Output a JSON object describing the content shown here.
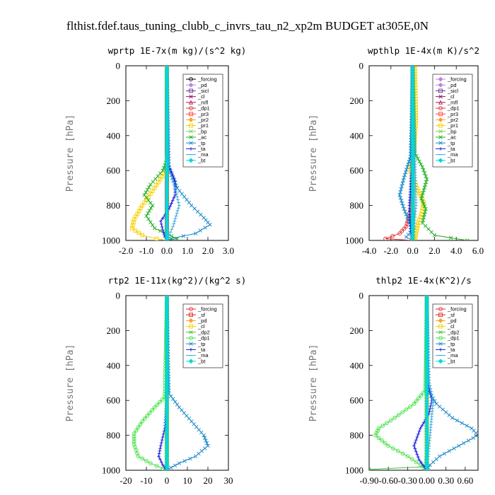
{
  "figure_title": "flthist.fdef.taus_tuning_clubb_c_invrs_tau_n2_xp2m  BUDGET at305E,0N",
  "chart_data": [
    {
      "type": "line",
      "title": "wprtp  1E-7x(m kg)/(s^2 kg)",
      "ylabel": "Pressure [hPa]",
      "xlim": [
        -2,
        3
      ],
      "ylim": [
        1000,
        0
      ],
      "xticks": [
        -2,
        -1,
        0,
        1,
        2,
        3
      ],
      "xtick_labels": [
        "-2.0",
        "-1.0",
        "0.0",
        "1.0",
        "2.0",
        "3.0"
      ],
      "yticks": [
        0,
        200,
        400,
        600,
        800,
        1000
      ],
      "ytick_labels": [
        "0",
        "200",
        "400",
        "600",
        "800",
        "1000"
      ],
      "legend_position": "top-right",
      "series": [
        {
          "name": "_forcing",
          "color": "#000000",
          "marker": "circle",
          "x": [
            0,
            0
          ],
          "y": [
            0,
            1000
          ]
        },
        {
          "name": "_pd",
          "color": "#b28ad8",
          "marker": "diamond",
          "x": [
            0,
            0
          ],
          "y": [
            0,
            1000
          ]
        },
        {
          "name": "_sicl",
          "color": "#6a2ca0",
          "marker": "square",
          "x": [
            0,
            0
          ],
          "y": [
            0,
            1000
          ]
        },
        {
          "name": "_cl",
          "color": "#8c1a66",
          "marker": "x",
          "x": [
            0,
            0
          ],
          "y": [
            0,
            1000
          ]
        },
        {
          "name": "_mfl",
          "color": "#b01a50",
          "marker": "triangle",
          "x": [
            0,
            0
          ],
          "y": [
            0,
            1000
          ]
        },
        {
          "name": "_dp1",
          "color": "#e03030",
          "marker": "circle",
          "x": [
            0,
            0
          ],
          "y": [
            0,
            1000
          ]
        },
        {
          "name": "_pr3",
          "color": "#ff4040",
          "marker": "square",
          "x": [
            0,
            0
          ],
          "y": [
            0,
            1000
          ]
        },
        {
          "name": "_pr2",
          "color": "#ffa020",
          "marker": "diamond",
          "x": [
            0,
            0
          ],
          "y": [
            0,
            1000
          ]
        },
        {
          "name": "_pr1",
          "color": "#f5d000",
          "marker": "square",
          "x": [
            0,
            0.02,
            -0.05,
            -0.6,
            -1.2,
            -1.6,
            -1.7,
            -1.2,
            -0.5,
            0
          ],
          "y": [
            0,
            500,
            600,
            700,
            800,
            880,
            930,
            970,
            990,
            1000
          ]
        },
        {
          "name": "_bp",
          "color": "#80d040",
          "marker": "x",
          "x": [
            0,
            0,
            0,
            0
          ],
          "y": [
            0,
            600,
            900,
            1000
          ]
        },
        {
          "name": "_ac",
          "color": "#20b020",
          "marker": "x",
          "x": [
            0,
            0,
            -0.2,
            -0.8,
            -1.1,
            -0.7,
            -1.0,
            -0.6,
            0.5,
            0
          ],
          "y": [
            0,
            540,
            600,
            680,
            740,
            800,
            860,
            930,
            990,
            1000
          ]
        },
        {
          "name": "_tp",
          "color": "#1a8ac8",
          "marker": "x",
          "x": [
            0,
            0.1,
            0.5,
            1.2,
            1.8,
            2.1,
            1.4,
            0.2,
            0
          ],
          "y": [
            0,
            580,
            700,
            800,
            870,
            910,
            960,
            990,
            1000
          ]
        },
        {
          "name": "_ta",
          "color": "#1a1ad8",
          "marker": "plus",
          "x": [
            0,
            0.05,
            0.4,
            0.4,
            0.1,
            -0.3,
            -0.2,
            -0.1,
            0
          ],
          "y": [
            0,
            560,
            660,
            740,
            820,
            890,
            940,
            980,
            1000
          ]
        },
        {
          "name": "_ma",
          "color": "#3aa8d8",
          "marker": "dash",
          "x": [
            0,
            0.1,
            0.4,
            0.6,
            0.3,
            0
          ],
          "y": [
            0,
            600,
            700,
            800,
            920,
            1000
          ]
        },
        {
          "name": "_bt",
          "color": "#00d8d8",
          "marker": "diamond",
          "x": [
            0,
            0
          ],
          "y": [
            0,
            1000
          ]
        }
      ]
    },
    {
      "type": "line",
      "title": "wpthlp  1E-4x(m K)/s^2",
      "ylabel": "Pressure [hPa]",
      "xlim": [
        -4,
        6
      ],
      "ylim": [
        1000,
        0
      ],
      "xticks": [
        -4,
        -2,
        0,
        2,
        4,
        6
      ],
      "xtick_labels": [
        "-4.0",
        "-2.0",
        "0.0",
        "2.0",
        "4.0",
        "6.0"
      ],
      "yticks": [
        0,
        200,
        400,
        600,
        800,
        1000
      ],
      "ytick_labels": [
        "0",
        "200",
        "400",
        "600",
        "800",
        "1000"
      ],
      "legend_position": "top-right",
      "series": [
        {
          "name": "_forcing",
          "color": "#c080d8",
          "marker": "diamond",
          "x": [
            0,
            0
          ],
          "y": [
            0,
            1000
          ]
        },
        {
          "name": "_pd",
          "color": "#b28ad8",
          "marker": "diamond",
          "x": [
            0,
            0
          ],
          "y": [
            0,
            1000
          ]
        },
        {
          "name": "_sicl",
          "color": "#6a2ca0",
          "marker": "square",
          "x": [
            0,
            0
          ],
          "y": [
            0,
            1000
          ]
        },
        {
          "name": "_cl",
          "color": "#8c1a66",
          "marker": "x",
          "x": [
            0,
            0
          ],
          "y": [
            0,
            1000
          ]
        },
        {
          "name": "_mfl",
          "color": "#b01a50",
          "marker": "triangle",
          "x": [
            0,
            0
          ],
          "y": [
            0,
            1000
          ]
        },
        {
          "name": "_dp1",
          "color": "#e03030",
          "marker": "circle",
          "x": [
            0,
            -0.1,
            -0.6,
            -1.2,
            -2.5,
            0
          ],
          "y": [
            0,
            800,
            920,
            960,
            990,
            1000
          ]
        },
        {
          "name": "_pr3",
          "color": "#ff4040",
          "marker": "square",
          "x": [
            0,
            0
          ],
          "y": [
            0,
            1000
          ]
        },
        {
          "name": "_pr2",
          "color": "#ffa020",
          "marker": "diamond",
          "x": [
            0,
            0
          ],
          "y": [
            0,
            1000
          ]
        },
        {
          "name": "_pr1",
          "color": "#f5d000",
          "marker": "square",
          "x": [
            0.2,
            0.3,
            0.1,
            -0.2,
            0.4,
            1.0,
            0.8,
            0.5,
            0.3,
            0.2
          ],
          "y": [
            0,
            300,
            500,
            600,
            700,
            780,
            850,
            900,
            960,
            1000
          ]
        },
        {
          "name": "_bp",
          "color": "#80d040",
          "marker": "x",
          "x": [
            0,
            0
          ],
          "y": [
            0,
            1000
          ]
        },
        {
          "name": "_ac",
          "color": "#20b020",
          "marker": "x",
          "x": [
            0,
            0.2,
            0.9,
            1.3,
            0.8,
            1.2,
            0.9,
            2.0,
            5.0
          ],
          "y": [
            0,
            500,
            580,
            650,
            760,
            820,
            900,
            970,
            1000
          ]
        },
        {
          "name": "_tp",
          "color": "#1a8ac8",
          "marker": "x",
          "x": [
            0,
            -0.2,
            -0.8,
            -1.2,
            -0.8,
            -0.4,
            0,
            -0.6,
            0
          ],
          "y": [
            0,
            520,
            640,
            740,
            820,
            880,
            940,
            980,
            1000
          ]
        },
        {
          "name": "_ta",
          "color": "#1a1ad8",
          "marker": "plus",
          "x": [
            0,
            -0.1,
            -0.3,
            -0.2,
            0
          ],
          "y": [
            0,
            600,
            800,
            950,
            1000
          ]
        },
        {
          "name": "_ma",
          "color": "#3aa8d8",
          "marker": "dash",
          "x": [
            0,
            0.2,
            0.3,
            0.1,
            0
          ],
          "y": [
            0,
            500,
            800,
            950,
            1000
          ]
        },
        {
          "name": "_bt",
          "color": "#00d8d8",
          "marker": "diamond",
          "x": [
            0,
            0
          ],
          "y": [
            0,
            1000
          ]
        }
      ]
    },
    {
      "type": "line",
      "title": "rtp2  1E-11x(kg^2)/(kg^2 s)",
      "ylabel": "Pressure [hPa]",
      "xlim": [
        -20,
        30
      ],
      "ylim": [
        1000,
        0
      ],
      "xticks": [
        -20,
        -10,
        0,
        10,
        20,
        30
      ],
      "xtick_labels": [
        "-20",
        "-10",
        "0",
        "10",
        "20",
        "30"
      ],
      "yticks": [
        0,
        200,
        400,
        600,
        800,
        1000
      ],
      "ytick_labels": [
        "0",
        "200",
        "400",
        "600",
        "800",
        "1000"
      ],
      "legend_position": "top-right",
      "series": [
        {
          "name": "_forcing",
          "color": "#e03030",
          "marker": "circle",
          "x": [
            0,
            0
          ],
          "y": [
            0,
            1000
          ]
        },
        {
          "name": "_sf",
          "color": "#e02020",
          "marker": "square",
          "x": [
            0,
            0
          ],
          "y": [
            0,
            1000
          ]
        },
        {
          "name": "_pd",
          "color": "#ffa020",
          "marker": "diamond",
          "x": [
            0,
            0
          ],
          "y": [
            0,
            1000
          ]
        },
        {
          "name": "_cl",
          "color": "#f5d000",
          "marker": "square",
          "x": [
            0,
            0
          ],
          "y": [
            0,
            1000
          ]
        },
        {
          "name": "_dp2",
          "color": "#40c040",
          "marker": "x",
          "x": [
            0,
            0
          ],
          "y": [
            0,
            1000
          ]
        },
        {
          "name": "_dp1",
          "color": "#40e040",
          "marker": "circle",
          "x": [
            0,
            -1,
            -6,
            -12,
            -16,
            -16,
            -14,
            -8,
            -2,
            0
          ],
          "y": [
            0,
            580,
            640,
            720,
            790,
            850,
            920,
            960,
            990,
            1000
          ]
        },
        {
          "name": "_tp",
          "color": "#1a8ac8",
          "marker": "x",
          "x": [
            0,
            1,
            6,
            12,
            18,
            20,
            14,
            6,
            2,
            0
          ],
          "y": [
            0,
            560,
            640,
            720,
            800,
            860,
            920,
            960,
            985,
            1000
          ]
        },
        {
          "name": "_ta",
          "color": "#1a1ad8",
          "marker": "plus",
          "x": [
            0,
            0,
            -1,
            -3,
            -4,
            -2,
            0
          ],
          "y": [
            0,
            600,
            760,
            860,
            920,
            970,
            1000
          ]
        },
        {
          "name": "_ma",
          "color": "#3aa8d8",
          "marker": "dash",
          "x": [
            0,
            0
          ],
          "y": [
            0,
            1000
          ]
        },
        {
          "name": "_bt",
          "color": "#00d8d8",
          "marker": "diamond",
          "x": [
            0,
            0
          ],
          "y": [
            0,
            1000
          ]
        }
      ]
    },
    {
      "type": "line",
      "title": "thlp2  1E-4x(K^2)/s",
      "ylabel": "Pressure [hPa]",
      "xlim": [
        -0.9,
        0.8
      ],
      "ylim": [
        1000,
        0
      ],
      "xticks": [
        -0.9,
        -0.6,
        -0.3,
        0,
        0.3,
        0.6
      ],
      "xtick_labels": [
        "-0.90",
        "-0.60",
        "-0.30",
        "0.00",
        "0.30",
        "0.60"
      ],
      "yticks": [
        0,
        200,
        400,
        600,
        800,
        1000
      ],
      "ytick_labels": [
        "0",
        "200",
        "400",
        "600",
        "800",
        "1000"
      ],
      "legend_position": "top-right",
      "series": [
        {
          "name": "_forcing",
          "color": "#e03030",
          "marker": "circle",
          "x": [
            0,
            0
          ],
          "y": [
            0,
            1000
          ]
        },
        {
          "name": "_sf",
          "color": "#e02020",
          "marker": "square",
          "x": [
            0,
            0
          ],
          "y": [
            0,
            1000
          ]
        },
        {
          "name": "_pd",
          "color": "#ffa020",
          "marker": "diamond",
          "x": [
            0,
            0
          ],
          "y": [
            0,
            1000
          ]
        },
        {
          "name": "_cl",
          "color": "#f5d000",
          "marker": "square",
          "x": [
            0,
            0
          ],
          "y": [
            0,
            1000
          ]
        },
        {
          "name": "_dp2",
          "color": "#40c040",
          "marker": "x",
          "x": [
            0,
            0,
            -0.02,
            -0.9
          ],
          "y": [
            0,
            900,
            980,
            995
          ]
        },
        {
          "name": "_dp1",
          "color": "#40e040",
          "marker": "circle",
          "x": [
            0,
            -0.02,
            -0.2,
            -0.5,
            -0.75,
            -0.8,
            -0.6,
            -0.3,
            -0.1,
            0
          ],
          "y": [
            0,
            540,
            620,
            700,
            760,
            800,
            860,
            920,
            970,
            1000
          ]
        },
        {
          "name": "_tp",
          "color": "#1a8ac8",
          "marker": "x",
          "x": [
            0,
            0.02,
            0.15,
            0.4,
            0.7,
            0.8,
            0.5,
            0.2,
            0.05,
            0
          ],
          "y": [
            0,
            540,
            620,
            700,
            760,
            800,
            860,
            920,
            970,
            1000
          ]
        },
        {
          "name": "_ta",
          "color": "#1a1ad8",
          "marker": "plus",
          "x": [
            0,
            0.02,
            0.08,
            0.03,
            -0.1,
            -0.2,
            -0.12,
            0
          ],
          "y": [
            0,
            500,
            600,
            680,
            760,
            860,
            940,
            1000
          ]
        },
        {
          "name": "_ma",
          "color": "#3aa8d8",
          "marker": "dash",
          "x": [
            0,
            0.04,
            0.1,
            0.05,
            0
          ],
          "y": [
            0,
            500,
            600,
            800,
            1000
          ]
        },
        {
          "name": "_bt",
          "color": "#00d8d8",
          "marker": "diamond",
          "x": [
            0,
            0
          ],
          "y": [
            0,
            1000
          ]
        }
      ]
    }
  ]
}
